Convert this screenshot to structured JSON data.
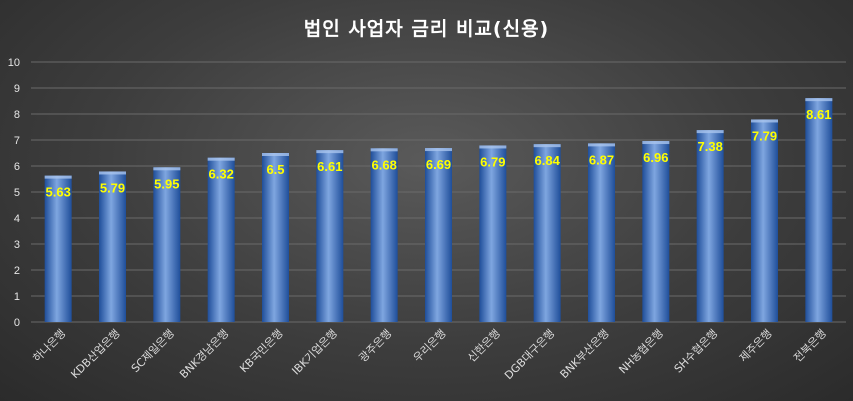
{
  "chart_data": {
    "type": "bar",
    "title": "법인 사업자 금리 비교(신용)",
    "categories": [
      "하나은행",
      "KDB산업은행",
      "SC제일은행",
      "BNK경남은행",
      "KB국민은행",
      "IBK기업은행",
      "광주은행",
      "우리은행",
      "신한은행",
      "DGB대구은행",
      "BNK부산은행",
      "NH농협은행",
      "SH수협은행",
      "제주은행",
      "전북은행"
    ],
    "values": [
      5.63,
      5.79,
      5.95,
      6.32,
      6.5,
      6.61,
      6.68,
      6.69,
      6.79,
      6.84,
      6.87,
      6.96,
      7.38,
      7.79,
      8.61
    ],
    "value_labels": [
      "5.63",
      "5.79",
      "5.95",
      "6.32",
      "6.5",
      "6.61",
      "6.68",
      "6.69",
      "6.79",
      "6.84",
      "6.87",
      "6.96",
      "7.38",
      "7.79",
      "8.61"
    ],
    "ylim": [
      0,
      10
    ],
    "yticks": [
      "0",
      "1",
      "2",
      "3",
      "4",
      "5",
      "6",
      "7",
      "8",
      "9",
      "10"
    ],
    "xlabel": "",
    "ylabel": "",
    "grid": true,
    "legend": "none",
    "colors": {
      "bar_light": "#7fa6e0",
      "bar_mid": "#3e74c8",
      "bar_dark": "#1f4e9a",
      "label": "#ffff00",
      "grid": "#6a6a6a"
    }
  }
}
